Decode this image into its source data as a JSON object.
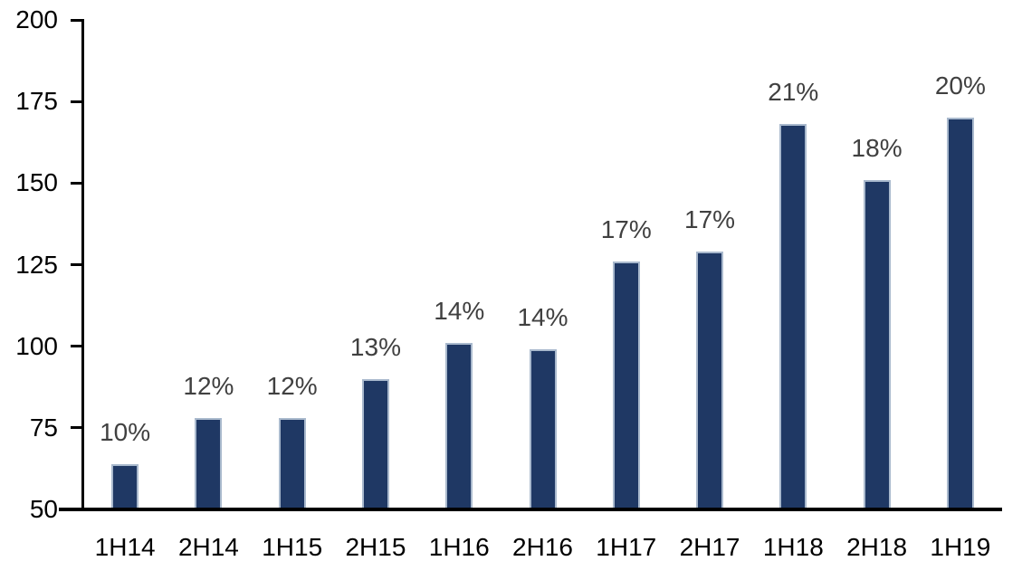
{
  "chart_data": {
    "type": "bar",
    "title": "",
    "xlabel": "",
    "ylabel": "",
    "categories": [
      "1H14",
      "2H14",
      "1H15",
      "2H15",
      "1H16",
      "2H16",
      "1H17",
      "2H17",
      "1H18",
      "2H18",
      "1H19"
    ],
    "values": [
      64,
      78,
      78,
      90,
      101,
      99,
      126,
      129,
      168,
      151,
      170
    ],
    "data_labels": [
      "10%",
      "12%",
      "12%",
      "13%",
      "14%",
      "14%",
      "17%",
      "17%",
      "21%",
      "18%",
      "20%"
    ],
    "ylim": [
      50,
      200
    ],
    "y_ticks": [
      50,
      75,
      100,
      125,
      150,
      175,
      200
    ],
    "grid": false,
    "legend": "none",
    "colors": {
      "bar_fill": "#1F3864",
      "bar_border": "#A9B9CD",
      "data_label": "#404040",
      "axis_line": "#000000",
      "tick_label": "#000000",
      "background": "#FFFFFF"
    }
  }
}
